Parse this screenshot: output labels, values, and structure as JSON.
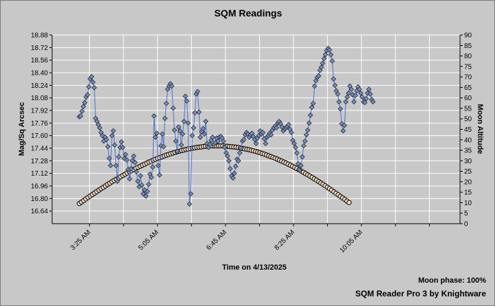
{
  "footer": {
    "moon_phase": "Moon phase: 100%",
    "credit": "SQM Reader Pro 3 by Knightware"
  },
  "colors": {
    "background": "#c8c8c8",
    "plot_background": "#c8c8c8",
    "grid": "#ffffff",
    "sqm_line": "#4a6fd0",
    "sqm_marker_fill": "#7f8fb0",
    "sqm_marker_stroke": "#1e2a44",
    "moon_marker_fill": "#f4dcc4",
    "moon_marker_stroke": "#000000"
  },
  "chart_data": {
    "type": "scatter",
    "title": "SQM Readings",
    "xlabel": "Time on 4/13/2025",
    "ylabel": "Mag/Sq Arcsec",
    "y2label": "Moon Altitude",
    "grid": true,
    "x_unit": "minutes after midnight",
    "xlim": [
      150,
      750
    ],
    "ylim": [
      16.48,
      18.88
    ],
    "y2lim": [
      0,
      90
    ],
    "x_ticks": [
      205,
      305,
      405,
      505,
      605
    ],
    "x_tick_labels": [
      "3:25 AM",
      "5:05 AM",
      "6:45 AM",
      "8:25 AM",
      "10:05 AM"
    ],
    "y_ticks": [
      16.64,
      16.8,
      16.96,
      17.12,
      17.28,
      17.44,
      17.6,
      17.76,
      17.92,
      18.08,
      18.24,
      18.4,
      18.56,
      18.72,
      18.88
    ],
    "y_tick_labels": [
      "16.64",
      "16.80",
      "16.96",
      "17.12",
      "17.28",
      "17.44",
      "17.60",
      "17.76",
      "17.92",
      "18.08",
      "18.24",
      "18.40",
      "18.56",
      "18.72",
      "18.88"
    ],
    "y2_ticks": [
      0,
      5,
      10,
      15,
      20,
      25,
      30,
      35,
      40,
      45,
      50,
      55,
      60,
      65,
      70,
      75,
      80,
      85,
      90
    ],
    "series": [
      {
        "name": "SQM",
        "axis": "left",
        "points": [
          [
            190,
            17.84
          ],
          [
            192,
            17.85
          ],
          [
            194,
            17.91
          ],
          [
            196,
            17.97
          ],
          [
            198,
            18.02
          ],
          [
            200,
            18.09
          ],
          [
            202,
            18.12
          ],
          [
            204,
            18.22
          ],
          [
            206,
            18.32
          ],
          [
            208,
            18.35
          ],
          [
            210,
            18.28
          ],
          [
            212,
            18.21
          ],
          [
            214,
            17.82
          ],
          [
            216,
            17.78
          ],
          [
            218,
            17.74
          ],
          [
            220,
            17.7
          ],
          [
            222,
            17.64
          ],
          [
            224,
            17.6
          ],
          [
            226,
            17.53
          ],
          [
            228,
            17.58
          ],
          [
            230,
            17.55
          ],
          [
            232,
            17.46
          ],
          [
            234,
            17.31
          ],
          [
            236,
            17.22
          ],
          [
            238,
            17.6
          ],
          [
            240,
            17.66
          ],
          [
            242,
            17.48
          ],
          [
            244,
            17.22
          ],
          [
            246,
            17.02
          ],
          [
            248,
            17.33
          ],
          [
            250,
            17.45
          ],
          [
            252,
            17.52
          ],
          [
            254,
            17.45
          ],
          [
            256,
            17.31
          ],
          [
            258,
            17.36
          ],
          [
            260,
            17.29
          ],
          [
            262,
            17.17
          ],
          [
            264,
            17.05
          ],
          [
            266,
            17.18
          ],
          [
            268,
            17.28
          ],
          [
            270,
            17.34
          ],
          [
            272,
            17.26
          ],
          [
            274,
            17.14
          ],
          [
            276,
            17.02
          ],
          [
            278,
            16.95
          ],
          [
            280,
            17.09
          ],
          [
            282,
            16.97
          ],
          [
            284,
            16.86
          ],
          [
            286,
            16.91
          ],
          [
            288,
            16.83
          ],
          [
            290,
            16.89
          ],
          [
            292,
            16.98
          ],
          [
            294,
            17.11
          ],
          [
            296,
            17.07
          ],
          [
            298,
            17.2
          ],
          [
            300,
            17.85
          ],
          [
            302,
            17.58
          ],
          [
            304,
            17.63
          ],
          [
            306,
            17.22
          ],
          [
            308,
            17.1
          ],
          [
            310,
            17.47
          ],
          [
            312,
            17.62
          ],
          [
            314,
            17.46
          ],
          [
            316,
            17.82
          ],
          [
            318,
            18.01
          ],
          [
            320,
            18.19
          ],
          [
            322,
            18.23
          ],
          [
            324,
            18.26
          ],
          [
            326,
            18.23
          ],
          [
            328,
            17.95
          ],
          [
            330,
            17.67
          ],
          [
            332,
            17.53
          ],
          [
            334,
            17.4
          ],
          [
            336,
            17.71
          ],
          [
            338,
            17.66
          ],
          [
            340,
            17.48
          ],
          [
            342,
            17.62
          ],
          [
            344,
            17.78
          ],
          [
            346,
            18.1
          ],
          [
            348,
            18.04
          ],
          [
            350,
            17.76
          ],
          [
            352,
            16.73
          ],
          [
            354,
            16.86
          ],
          [
            356,
            17.6
          ],
          [
            358,
            17.7
          ],
          [
            360,
            17.89
          ],
          [
            362,
            18.13
          ],
          [
            364,
            18.16
          ],
          [
            366,
            17.9
          ],
          [
            368,
            17.58
          ],
          [
            370,
            17.65
          ],
          [
            372,
            17.69
          ],
          [
            374,
            17.62
          ],
          [
            376,
            17.78
          ],
          [
            378,
            17.5
          ],
          [
            380,
            17.45
          ],
          [
            382,
            17.49
          ],
          [
            384,
            17.54
          ],
          [
            386,
            17.58
          ],
          [
            388,
            17.49
          ],
          [
            390,
            17.51
          ],
          [
            392,
            17.57
          ],
          [
            394,
            17.53
          ],
          [
            396,
            17.58
          ],
          [
            398,
            17.59
          ],
          [
            400,
            17.57
          ],
          [
            402,
            17.53
          ],
          [
            404,
            17.45
          ],
          [
            406,
            17.38
          ],
          [
            408,
            17.34
          ],
          [
            410,
            17.28
          ],
          [
            412,
            17.18
          ],
          [
            414,
            17.09
          ],
          [
            416,
            17.06
          ],
          [
            418,
            17.12
          ],
          [
            420,
            17.21
          ],
          [
            422,
            17.3
          ],
          [
            424,
            17.28
          ],
          [
            426,
            17.38
          ],
          [
            428,
            17.44
          ],
          [
            430,
            17.53
          ],
          [
            432,
            17.55
          ],
          [
            434,
            17.61
          ],
          [
            436,
            17.64
          ],
          [
            438,
            17.62
          ],
          [
            440,
            17.58
          ],
          [
            442,
            17.61
          ],
          [
            444,
            17.63
          ],
          [
            446,
            17.59
          ],
          [
            448,
            17.55
          ],
          [
            450,
            17.5
          ],
          [
            452,
            17.57
          ],
          [
            454,
            17.6
          ],
          [
            456,
            17.66
          ],
          [
            458,
            17.62
          ],
          [
            460,
            17.64
          ],
          [
            462,
            17.56
          ],
          [
            464,
            17.5
          ],
          [
            466,
            17.58
          ],
          [
            468,
            17.6
          ],
          [
            470,
            17.63
          ],
          [
            472,
            17.61
          ],
          [
            474,
            17.67
          ],
          [
            476,
            17.7
          ],
          [
            478,
            17.72
          ],
          [
            480,
            17.7
          ],
          [
            482,
            17.76
          ],
          [
            484,
            17.78
          ],
          [
            486,
            17.75
          ],
          [
            488,
            17.71
          ],
          [
            490,
            17.66
          ],
          [
            492,
            17.69
          ],
          [
            494,
            17.7
          ],
          [
            496,
            17.72
          ],
          [
            498,
            17.74
          ],
          [
            500,
            17.68
          ],
          [
            502,
            17.64
          ],
          [
            504,
            17.54
          ],
          [
            506,
            17.5
          ],
          [
            508,
            17.45
          ],
          [
            510,
            17.38
          ],
          [
            512,
            17.24
          ],
          [
            514,
            17.16
          ],
          [
            516,
            17.22
          ],
          [
            518,
            17.33
          ],
          [
            520,
            17.47
          ],
          [
            522,
            17.53
          ],
          [
            524,
            17.61
          ],
          [
            526,
            17.67
          ],
          [
            528,
            17.76
          ],
          [
            530,
            17.86
          ],
          [
            532,
            17.96
          ],
          [
            534,
            18.01
          ],
          [
            536,
            18.23
          ],
          [
            538,
            18.3
          ],
          [
            540,
            18.34
          ],
          [
            542,
            18.36
          ],
          [
            544,
            18.43
          ],
          [
            546,
            18.47
          ],
          [
            548,
            18.52
          ],
          [
            550,
            18.58
          ],
          [
            552,
            18.63
          ],
          [
            554,
            18.68
          ],
          [
            556,
            18.71
          ],
          [
            558,
            18.69
          ],
          [
            560,
            18.63
          ],
          [
            562,
            18.55
          ],
          [
            564,
            18.32
          ],
          [
            566,
            18.24
          ],
          [
            568,
            18.17
          ],
          [
            570,
            18.13
          ],
          [
            572,
            18.03
          ],
          [
            574,
            17.94
          ],
          [
            576,
            17.75
          ],
          [
            578,
            17.66
          ],
          [
            580,
            17.73
          ],
          [
            582,
            18.03
          ],
          [
            584,
            18.09
          ],
          [
            586,
            18.14
          ],
          [
            588,
            18.23
          ],
          [
            590,
            18.19
          ],
          [
            592,
            18.12
          ],
          [
            594,
            18.03
          ],
          [
            596,
            18.11
          ],
          [
            598,
            18.17
          ],
          [
            600,
            18.22
          ],
          [
            602,
            18.19
          ],
          [
            604,
            18.14
          ],
          [
            606,
            18.09
          ],
          [
            608,
            18.03
          ],
          [
            610,
            18.02
          ],
          [
            612,
            18.07
          ],
          [
            614,
            18.14
          ],
          [
            616,
            18.19
          ],
          [
            618,
            18.13
          ],
          [
            620,
            18.06
          ],
          [
            622,
            18.03
          ]
        ]
      },
      {
        "name": "Moon Altitude",
        "axis": "right",
        "x_start": 190,
        "x_step": 3.2,
        "values": [
          9.6,
          10.3,
          11.0,
          11.8,
          12.5,
          13.2,
          13.9,
          14.6,
          15.3,
          16.0,
          16.7,
          17.3,
          18.0,
          18.7,
          19.3,
          20.0,
          20.6,
          21.2,
          21.8,
          22.4,
          23.0,
          23.6,
          24.2,
          24.8,
          25.3,
          25.9,
          26.4,
          26.9,
          27.4,
          27.9,
          28.4,
          28.9,
          29.4,
          29.8,
          30.3,
          30.7,
          31.1,
          31.5,
          31.9,
          32.3,
          32.7,
          33.0,
          33.4,
          33.7,
          34.0,
          34.3,
          34.6,
          34.9,
          35.1,
          35.4,
          35.6,
          35.8,
          36.0,
          36.2,
          36.4,
          36.5,
          36.6,
          36.8,
          36.9,
          37.0,
          37.0,
          37.1,
          37.1,
          37.1,
          37.1,
          37.1,
          37.1,
          37.0,
          36.9,
          36.8,
          36.7,
          36.6,
          36.5,
          36.3,
          36.1,
          35.9,
          35.7,
          35.5,
          35.3,
          35.0,
          34.8,
          34.5,
          34.2,
          33.9,
          33.5,
          33.2,
          32.8,
          32.4,
          32.0,
          31.6,
          31.2,
          30.8,
          30.3,
          29.9,
          29.4,
          28.9,
          28.4,
          27.9,
          27.4,
          26.8,
          26.3,
          25.7,
          25.1,
          24.5,
          23.9,
          23.3,
          22.7,
          22.1,
          21.4,
          20.8,
          20.1,
          19.4,
          18.8,
          18.1,
          17.4,
          16.7,
          16.0,
          15.2,
          14.5,
          13.8,
          13.0,
          12.3,
          11.6,
          10.8,
          10.1
        ]
      }
    ]
  }
}
